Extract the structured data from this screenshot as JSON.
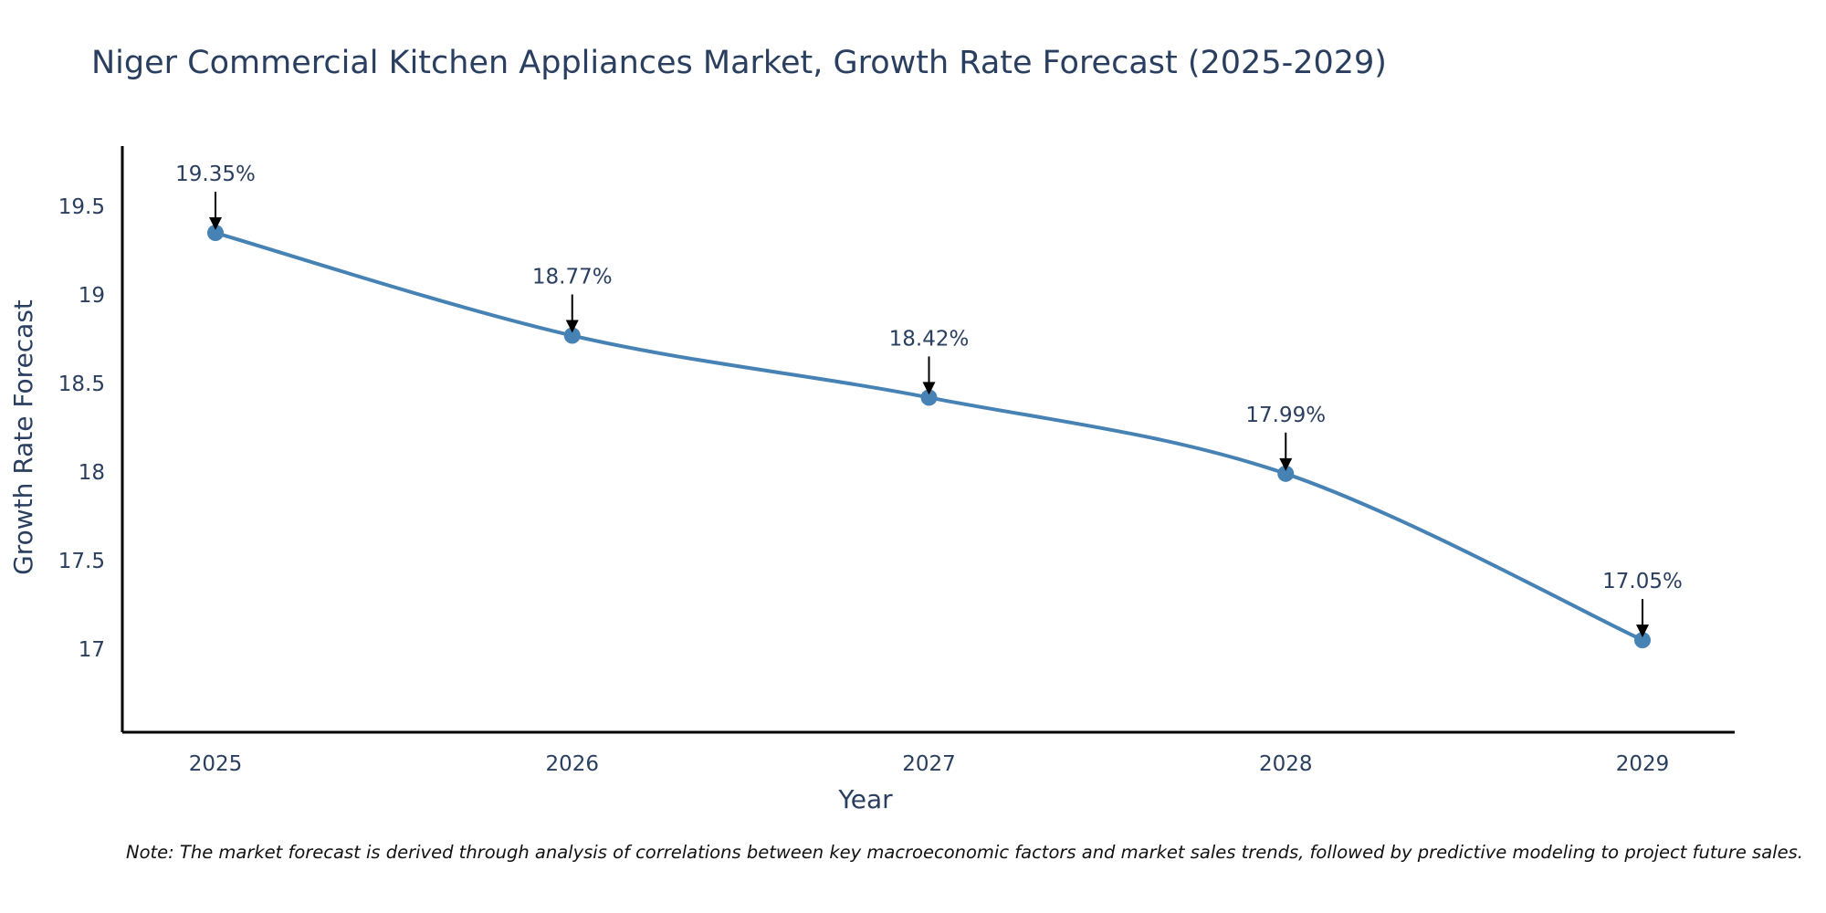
{
  "chart_data": {
    "type": "line",
    "title": "Niger Commercial Kitchen Appliances Market, Growth Rate Forecast (2025-2029)",
    "xlabel": "Year",
    "ylabel": "Growth Rate Forecast",
    "categories": [
      "2025",
      "2026",
      "2027",
      "2028",
      "2029"
    ],
    "values": [
      19.35,
      18.77,
      18.42,
      17.99,
      17.05
    ],
    "data_labels": [
      "19.35%",
      "18.77%",
      "18.42%",
      "17.99%",
      "17.05%"
    ],
    "yticks": [
      17,
      17.5,
      18,
      18.5,
      19,
      19.5
    ],
    "ytick_labels": [
      "17",
      "17.5",
      "18",
      "18.5",
      "19",
      "19.5"
    ],
    "ylim": [
      16.53,
      19.84
    ],
    "grid": false,
    "line_shape": "spline",
    "series_color": "#4682b4",
    "note": "Note: The market forecast is derived through analysis of correlations between key macroeconomic factors and market sales trends, followed by predictive modeling to project future sales."
  }
}
